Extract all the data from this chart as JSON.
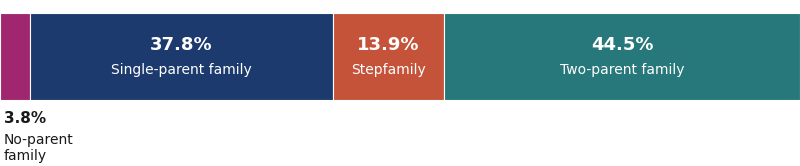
{
  "segments": [
    {
      "label": "No-parent\nfamily",
      "pct_label": "3.8%",
      "value": 3.8,
      "color": "#a0266f",
      "text_color": "#ffffff",
      "label_outside": true
    },
    {
      "label": "Single-parent family",
      "pct_label": "37.8%",
      "value": 37.8,
      "color": "#1c3a6e",
      "text_color": "#ffffff",
      "label_outside": false
    },
    {
      "label": "Stepfamily",
      "pct_label": "13.9%",
      "value": 13.9,
      "color": "#c4533a",
      "text_color": "#ffffff",
      "label_outside": false
    },
    {
      "label": "Two-parent family",
      "pct_label": "44.5%",
      "value": 44.5,
      "color": "#27787a",
      "text_color": "#ffffff",
      "label_outside": false
    }
  ],
  "background_color": "#ffffff",
  "pct_fontsize": 13,
  "label_fontsize": 10,
  "outside_pct_fontsize": 11,
  "outside_label_fontsize": 10
}
